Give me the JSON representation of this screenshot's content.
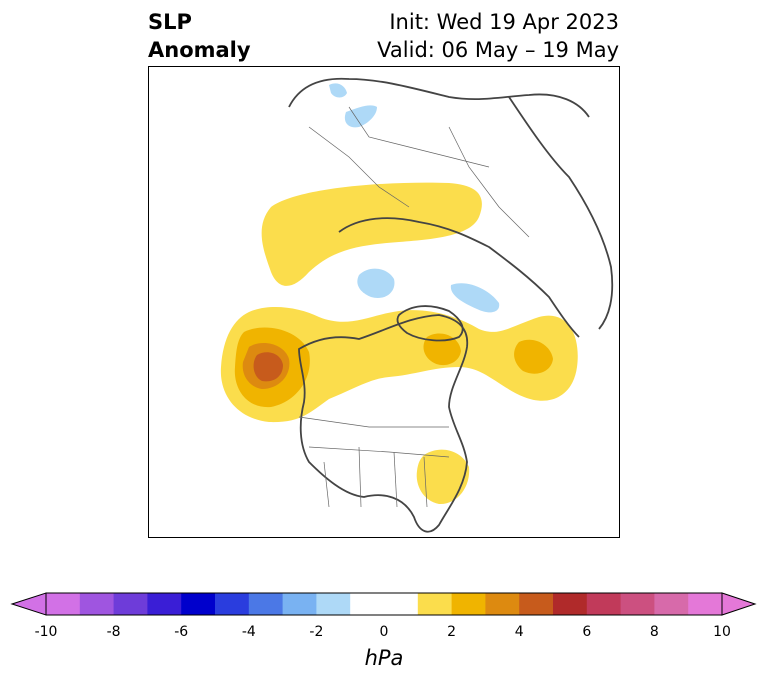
{
  "header": {
    "title_line1": "SLP",
    "title_line2": "Anomaly",
    "init": "Init: Wed 19 Apr 2023",
    "valid": "Valid: 06 May – 19 May"
  },
  "colorbar": {
    "units": "hPa",
    "tick_labels": [
      "-10",
      "-8",
      "-6",
      "-4",
      "-2",
      "0",
      "2",
      "4",
      "6",
      "8",
      "10"
    ],
    "colors": [
      "#d271e6",
      "#9f55e0",
      "#6e3cd9",
      "#3a1ed6",
      "#0000cc",
      "#2a3dde",
      "#4b78e6",
      "#79b2f2",
      "#aed9f7",
      "#ffffff",
      "#ffffff",
      "#fbdd4c",
      "#f0b400",
      "#dd8a10",
      "#c75b1c",
      "#b02a2a",
      "#c13a5a",
      "#cc5080",
      "#d76aaa",
      "#e478d8"
    ],
    "extend_left_color": "#d271e6",
    "extend_right_color": "#e478d8"
  },
  "map": {
    "projection": "north-polar-stereographic",
    "features": [
      "coastlines",
      "country-borders",
      "us-state-borders"
    ]
  }
}
